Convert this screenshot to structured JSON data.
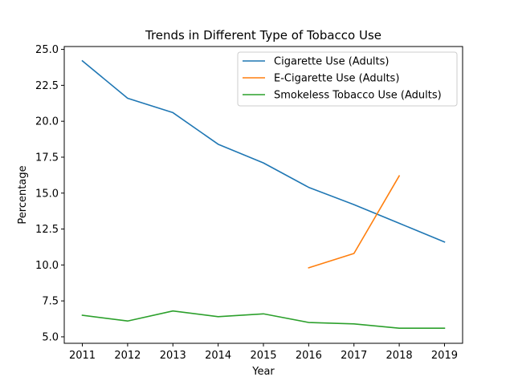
{
  "chart_data": {
    "type": "line",
    "title": "Trends in Different Type of Tobacco Use",
    "xlabel": "Year",
    "ylabel": "Percentage",
    "x": [
      2011,
      2012,
      2013,
      2014,
      2015,
      2016,
      2017,
      2018,
      2019
    ],
    "xlim": [
      2010.6,
      2019.4
    ],
    "ylim": [
      4.55,
      25.2
    ],
    "yticks": [
      5.0,
      7.5,
      10.0,
      12.5,
      15.0,
      17.5,
      20.0,
      22.5,
      25.0
    ],
    "ytick_labels": [
      "5.0",
      "7.5",
      "10.0",
      "12.5",
      "15.0",
      "17.5",
      "20.0",
      "22.5",
      "25.0"
    ],
    "xtick_labels": [
      "2011",
      "2012",
      "2013",
      "2014",
      "2015",
      "2016",
      "2017",
      "2018",
      "2019"
    ],
    "grid": false,
    "legend_position": "upper right",
    "series": [
      {
        "name": "Cigarette Use (Adults)",
        "color": "#1f77b4",
        "x": [
          2011,
          2012,
          2013,
          2014,
          2015,
          2016,
          2017,
          2018,
          2019
        ],
        "values": [
          24.2,
          21.6,
          20.6,
          18.4,
          17.1,
          15.4,
          14.2,
          12.9,
          11.6
        ]
      },
      {
        "name": "E-Cigarette Use (Adults)",
        "color": "#ff7f0e",
        "x": [
          2016,
          2017,
          2018
        ],
        "values": [
          9.8,
          10.8,
          16.2
        ]
      },
      {
        "name": "Smokeless Tobacco Use (Adults)",
        "color": "#2ca02c",
        "x": [
          2011,
          2012,
          2013,
          2014,
          2015,
          2016,
          2017,
          2018,
          2019
        ],
        "values": [
          6.5,
          6.1,
          6.8,
          6.4,
          6.6,
          6.0,
          5.9,
          5.6,
          5.6
        ]
      }
    ]
  }
}
